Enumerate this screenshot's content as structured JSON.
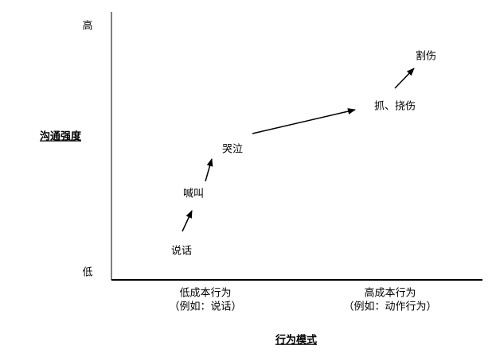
{
  "y_axis": {
    "title": "沟通强度",
    "high": "高",
    "low": "低"
  },
  "x_axis": {
    "title": "行为模式",
    "groups": [
      {
        "label": "低成本行为",
        "example": "（例如：说话）"
      },
      {
        "label": "高成本行为",
        "example": "（例如：动作行为）"
      }
    ]
  },
  "nodes": [
    {
      "label": "说话"
    },
    {
      "label": "喊叫"
    },
    {
      "label": "哭泣"
    },
    {
      "label": "抓、挠伤"
    },
    {
      "label": "割伤"
    }
  ]
}
